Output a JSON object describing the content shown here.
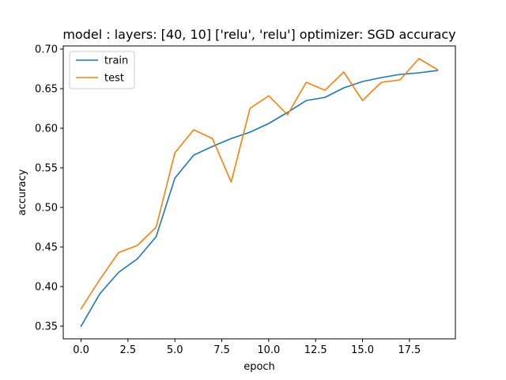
{
  "chart_data": {
    "type": "line",
    "title": "model : layers: [40, 10] ['relu', 'relu'] optimizer: SGD accuracy",
    "xlabel": "epoch",
    "ylabel": "accuracy",
    "xlim": [
      -0.95,
      19.95
    ],
    "ylim": [
      0.334,
      0.704
    ],
    "xticks": [
      0.0,
      2.5,
      5.0,
      7.5,
      10.0,
      12.5,
      15.0,
      17.5
    ],
    "xtick_labels": [
      "0.0",
      "2.5",
      "5.0",
      "7.5",
      "10.0",
      "12.5",
      "15.0",
      "17.5"
    ],
    "yticks": [
      0.35,
      0.4,
      0.45,
      0.5,
      0.55,
      0.6,
      0.65,
      0.7
    ],
    "ytick_labels": [
      "0.35",
      "0.40",
      "0.45",
      "0.50",
      "0.55",
      "0.60",
      "0.65",
      "0.70"
    ],
    "grid": false,
    "legend_position": "upper left",
    "x": [
      0,
      1,
      2,
      3,
      4,
      5,
      6,
      7,
      8,
      9,
      10,
      11,
      12,
      13,
      14,
      15,
      16,
      17,
      18,
      19
    ],
    "series": [
      {
        "name": "train",
        "color": "#1f77b4",
        "values": [
          0.35,
          0.391,
          0.418,
          0.435,
          0.463,
          0.537,
          0.566,
          0.577,
          0.587,
          0.595,
          0.606,
          0.62,
          0.635,
          0.639,
          0.651,
          0.659,
          0.664,
          0.668,
          0.67,
          0.673
        ]
      },
      {
        "name": "test",
        "color": "#ff7f0e",
        "values": [
          0.372,
          0.409,
          0.443,
          0.452,
          0.475,
          0.569,
          0.598,
          0.587,
          0.532,
          0.625,
          0.641,
          0.617,
          0.658,
          0.648,
          0.671,
          0.635,
          0.658,
          0.661,
          0.688,
          0.674
        ]
      }
    ]
  }
}
